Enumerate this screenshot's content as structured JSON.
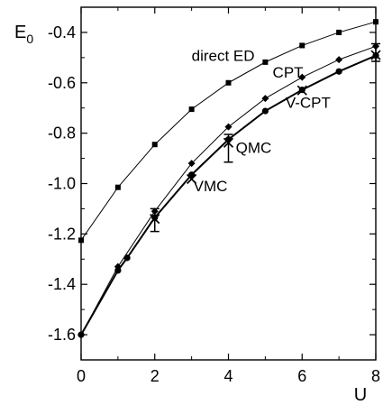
{
  "chart_data": {
    "type": "line",
    "xlabel": "U",
    "ylabel": "E",
    "ylabel_sub": "0",
    "xlim": [
      0,
      8
    ],
    "ylim": [
      -1.7,
      -0.3
    ],
    "xticks": [
      0,
      2,
      4,
      6,
      8
    ],
    "yticks": [
      -1.6,
      -1.4,
      -1.2,
      -1.0,
      -0.8,
      -0.6,
      -0.4
    ],
    "xtick_labels": [
      "0",
      "2",
      "4",
      "6",
      "8"
    ],
    "ytick_labels": [
      "-1.6",
      "-1.4",
      "-1.2",
      "-1.0",
      "-0.8",
      "-0.6",
      "-0.4"
    ],
    "grid": false,
    "series": [
      {
        "name": "direct ED",
        "marker": "square",
        "x": [
          0,
          1,
          2,
          3,
          4,
          5,
          6,
          7,
          8
        ],
        "y": [
          -1.225,
          -1.015,
          -0.845,
          -0.705,
          -0.6,
          -0.518,
          -0.452,
          -0.4,
          -0.358
        ]
      },
      {
        "name": "CPT",
        "marker": "diamond",
        "x": [
          0,
          1,
          2,
          3,
          4,
          5,
          6,
          7,
          8
        ],
        "y": [
          -1.6,
          -1.33,
          -1.11,
          -0.92,
          -0.775,
          -0.662,
          -0.578,
          -0.508,
          -0.455
        ]
      },
      {
        "name": "V-CPT",
        "marker": "circle",
        "thick": true,
        "x": [
          0,
          1,
          1.25,
          2,
          3,
          4,
          5,
          6,
          7,
          8
        ],
        "y": [
          -1.6,
          -1.345,
          -1.295,
          -1.135,
          -0.965,
          -0.825,
          -0.712,
          -0.628,
          -0.555,
          -0.492
        ]
      },
      {
        "name": "VMC",
        "marker": "x",
        "points_only": true,
        "x": [
          2,
          3,
          4,
          6,
          8
        ],
        "y": [
          -1.14,
          -0.982,
          -0.838,
          -0.63,
          -0.49
        ]
      },
      {
        "name": "QMC",
        "marker": "errorbar",
        "points_only": true,
        "x": [
          2,
          4,
          8
        ],
        "y": [
          -1.145,
          -0.86,
          -0.48
        ],
        "err": [
          0.045,
          0.055,
          0.035
        ]
      }
    ],
    "annotations": [
      {
        "text": "direct ED",
        "x": 3.0,
        "y": -0.513
      },
      {
        "text": "CPT",
        "x": 5.2,
        "y": -0.58
      },
      {
        "text": "V-CPT",
        "x": 5.55,
        "y": -0.7
      },
      {
        "text": "QMC",
        "x": 4.2,
        "y": -0.878
      },
      {
        "text": "VMC",
        "x": 3.05,
        "y": -1.03
      }
    ]
  }
}
